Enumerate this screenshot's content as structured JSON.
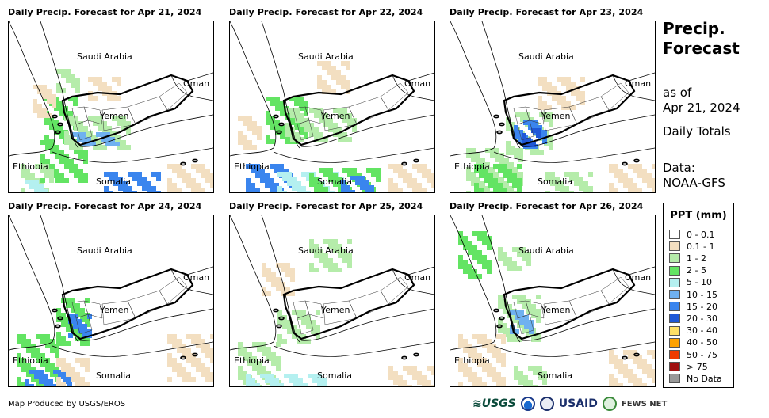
{
  "panels": [
    {
      "title": "Daily Precip. Forecast for Apr 21, 2024",
      "key": "apr21"
    },
    {
      "title": "Daily Precip. Forecast for Apr 22, 2024",
      "key": "apr22"
    },
    {
      "title": "Daily Precip. Forecast for Apr 23, 2024",
      "key": "apr23"
    },
    {
      "title": "Daily Precip. Forecast for Apr 24, 2024",
      "key": "apr24"
    },
    {
      "title": "Daily Precip. Forecast for Apr 25, 2024",
      "key": "apr25"
    },
    {
      "title": "Daily Precip. Forecast for Apr 26, 2024",
      "key": "apr26"
    }
  ],
  "map_labels": {
    "saudi": "Saudi Arabia",
    "oman": "Oman",
    "yemen": "Yemen",
    "ethiopia": "Ethiopia",
    "somalia": "Somalia"
  },
  "side": {
    "title_line1": "Precip.",
    "title_line2": "Forecast",
    "asof_line1": "as of",
    "asof_line2": "Apr 21, 2024",
    "totals": "Daily Totals",
    "data_line1": "Data:",
    "data_line2": "NOAA-GFS"
  },
  "legend": {
    "title": "PPT (mm)",
    "items": [
      {
        "label": "0 - 0.1",
        "color": "#ffffff"
      },
      {
        "label": "0.1 - 1",
        "color": "#f3dfc1"
      },
      {
        "label": "1 - 2",
        "color": "#b5ecaa"
      },
      {
        "label": "2 - 5",
        "color": "#63e463"
      },
      {
        "label": "5 - 10",
        "color": "#b4f0f0"
      },
      {
        "label": "10 - 15",
        "color": "#6fb1f0"
      },
      {
        "label": "15 - 20",
        "color": "#3a85ee"
      },
      {
        "label": "20 - 30",
        "color": "#1f58d6"
      },
      {
        "label": "30 - 40",
        "color": "#ffe066"
      },
      {
        "label": "40 - 50",
        "color": "#ffa200"
      },
      {
        "label": "50 - 75",
        "color": "#ee3b00"
      },
      {
        "label": "> 75",
        "color": "#a01010"
      },
      {
        "label": "No Data",
        "color": "#999999"
      }
    ]
  },
  "credit": "Map Produced by USGS/EROS",
  "logos": {
    "usgs": "≋USGS",
    "usaid": "USAID",
    "fews": "FEWS NET"
  }
}
